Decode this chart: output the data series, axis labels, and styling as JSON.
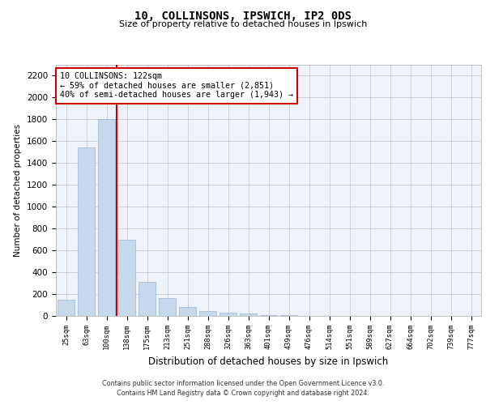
{
  "title1": "10, COLLINSONS, IPSWICH, IP2 0DS",
  "title2": "Size of property relative to detached houses in Ipswich",
  "xlabel": "Distribution of detached houses by size in Ipswich",
  "ylabel": "Number of detached properties",
  "categories": [
    "25sqm",
    "63sqm",
    "100sqm",
    "138sqm",
    "175sqm",
    "213sqm",
    "251sqm",
    "288sqm",
    "326sqm",
    "363sqm",
    "401sqm",
    "439sqm",
    "476sqm",
    "514sqm",
    "551sqm",
    "589sqm",
    "627sqm",
    "664sqm",
    "702sqm",
    "739sqm",
    "777sqm"
  ],
  "values": [
    150,
    1540,
    1800,
    700,
    315,
    160,
    80,
    42,
    26,
    20,
    10,
    4,
    2,
    1,
    1,
    0,
    0,
    0,
    0,
    0,
    0
  ],
  "bar_color": "#c6d9ec",
  "bar_edge_color": "#9ab8d0",
  "red_line_x": 2.5,
  "annotation_text": "10 COLLINSONS: 122sqm\n← 59% of detached houses are smaller (2,851)\n40% of semi-detached houses are larger (1,943) →",
  "annotation_box_color": "#ffffff",
  "annotation_box_edge": "#cc0000",
  "annotation_text_color": "#000000",
  "red_line_color": "#cc0000",
  "grid_color": "#c8c8d8",
  "background_color": "#eef2fa",
  "footer1": "Contains HM Land Registry data © Crown copyright and database right 2024.",
  "footer2": "Contains public sector information licensed under the Open Government Licence v3.0.",
  "ylim": [
    0,
    2300
  ],
  "yticks": [
    0,
    200,
    400,
    600,
    800,
    1000,
    1200,
    1400,
    1600,
    1800,
    2000,
    2200
  ]
}
